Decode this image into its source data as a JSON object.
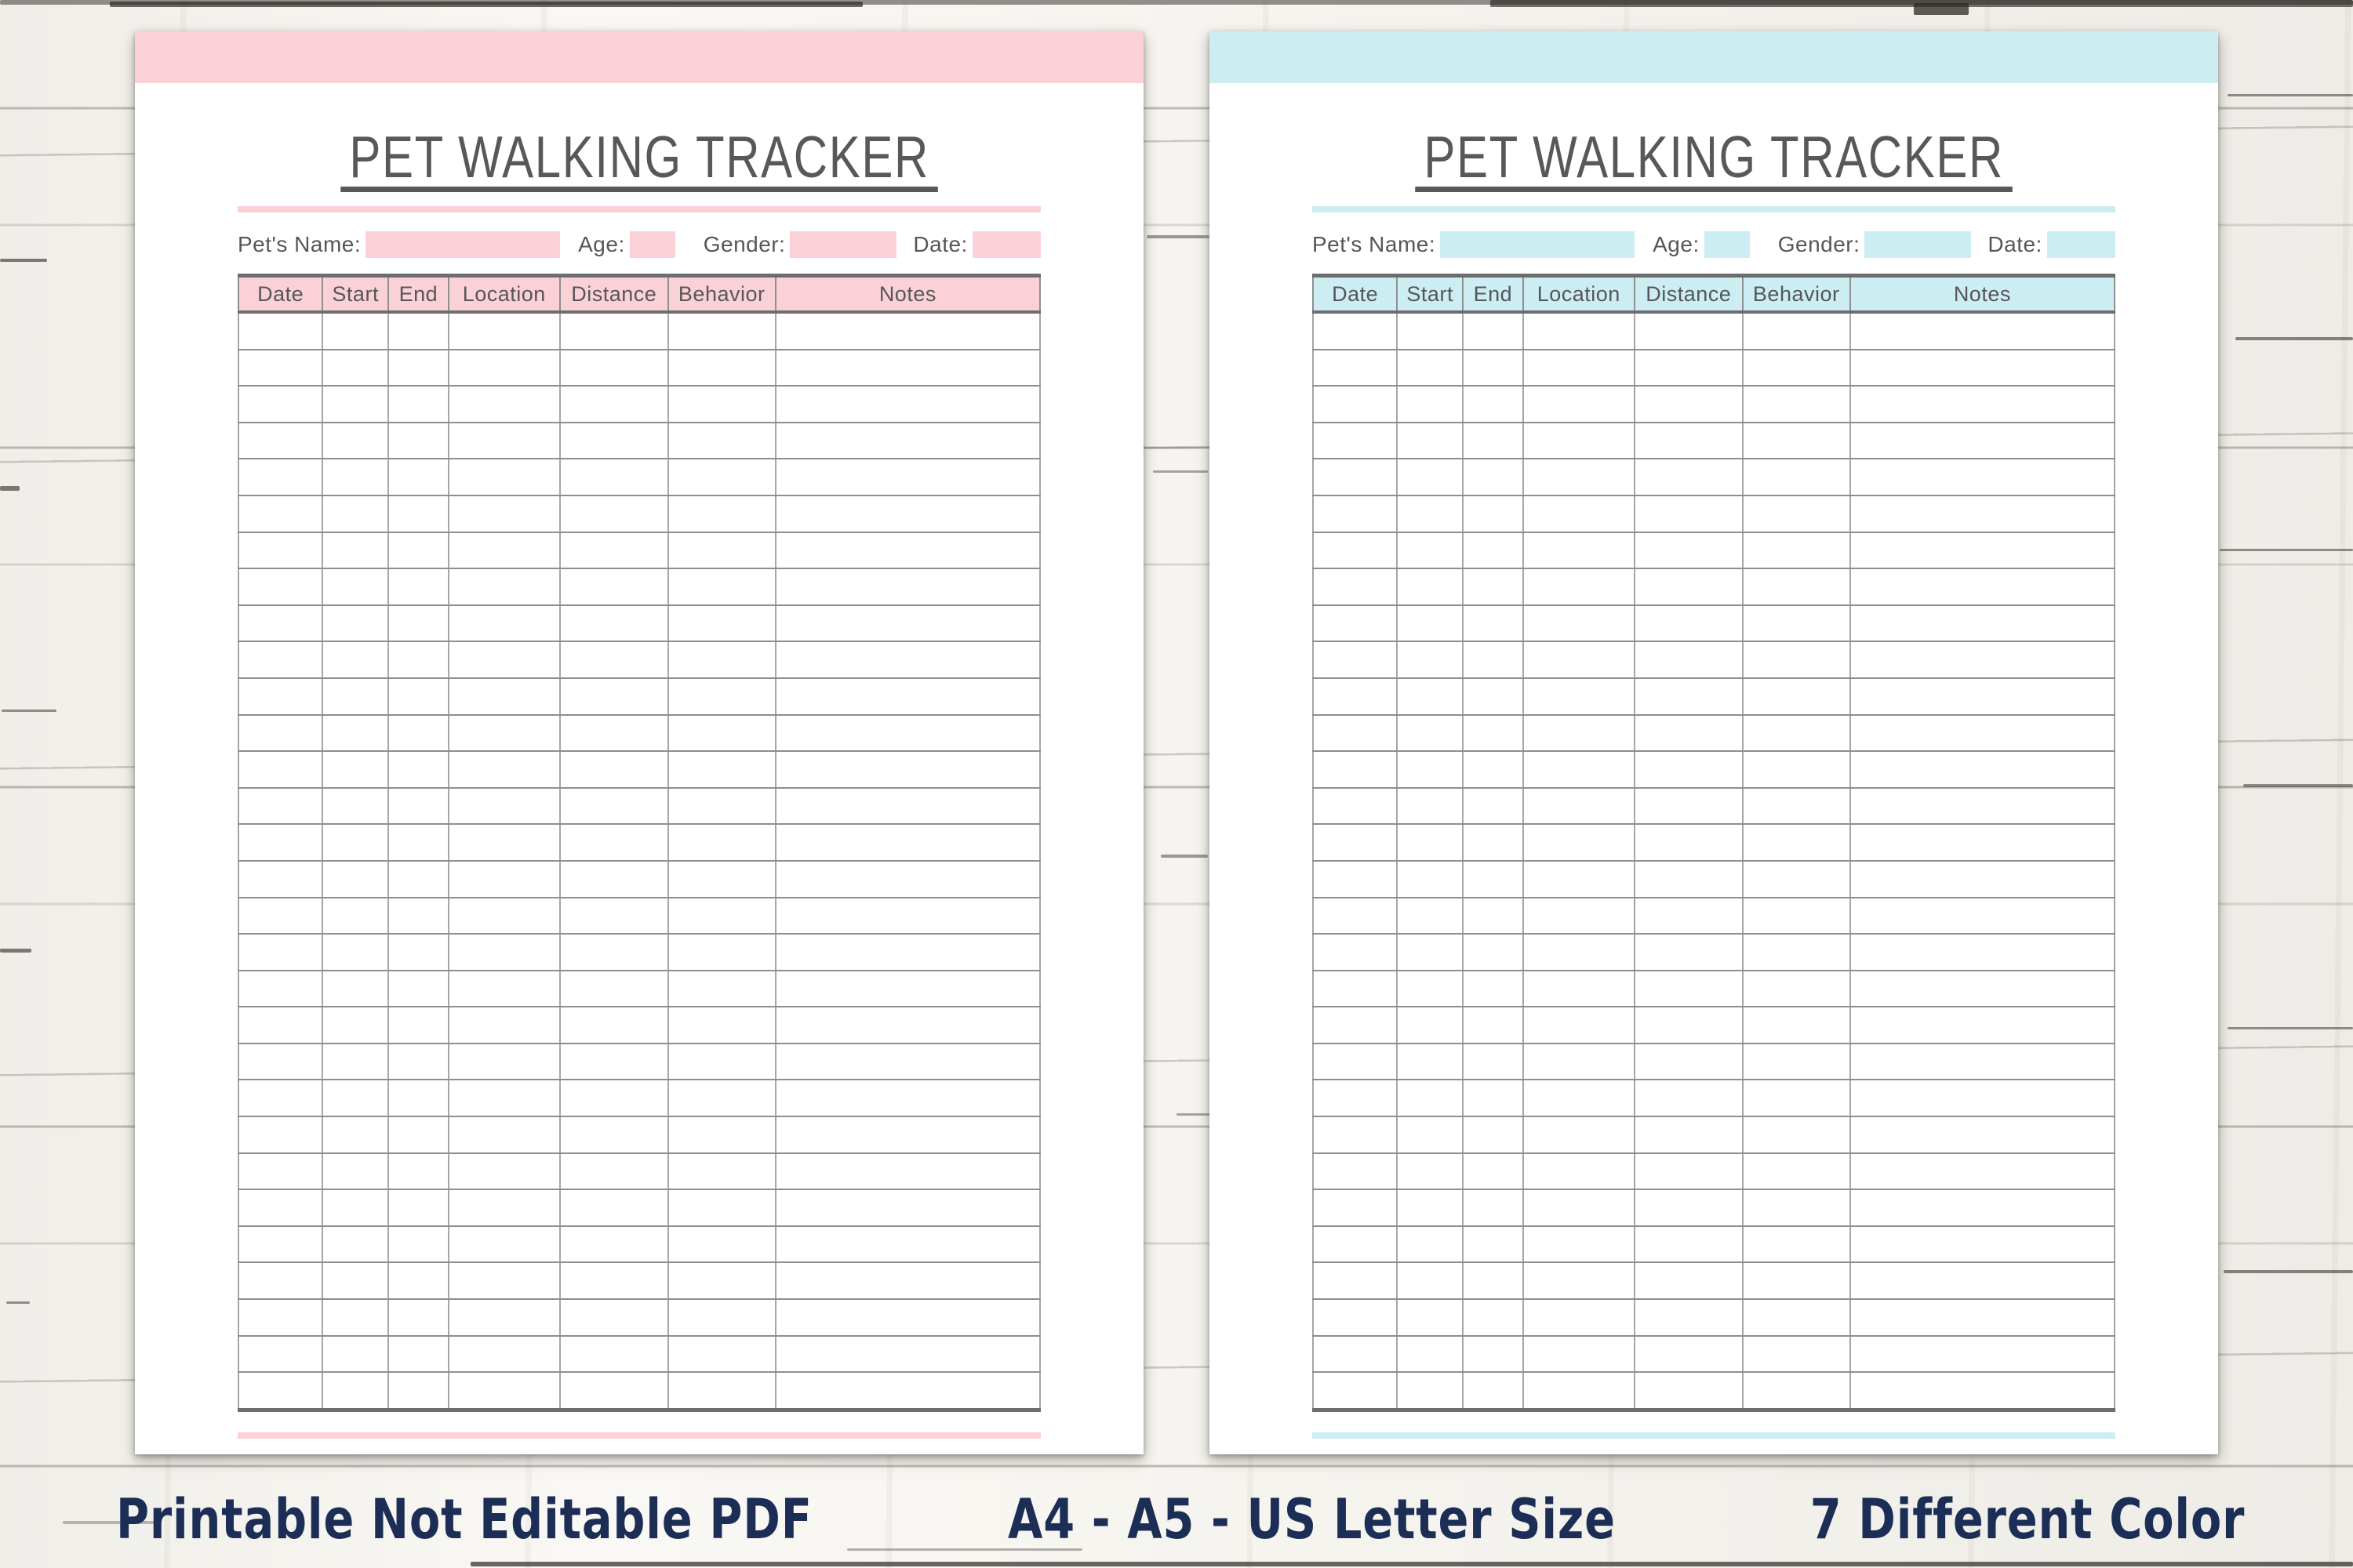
{
  "sheet": {
    "title": "PET WALKING TRACKER",
    "fields": [
      {
        "label": "Pet's Name:"
      },
      {
        "label": "Age:"
      },
      {
        "label": "Gender:"
      },
      {
        "label": "Date:"
      }
    ],
    "table": {
      "columns": [
        "Date",
        "Start",
        "End",
        "Location",
        "Distance",
        "Behavior",
        "Notes"
      ],
      "row_count": 30
    }
  },
  "variants": [
    {
      "name": "pink",
      "accent": "#fbd1d8"
    },
    {
      "name": "cyan",
      "accent": "#cceef3"
    }
  ],
  "footer": {
    "items": [
      "Printable Not Editable PDF",
      "A4 - A5 - US Letter Size",
      "7 Different Color"
    ]
  },
  "colors": {
    "title_text": "#58585b",
    "label_text": "#565659",
    "grid_heavy": "#6d6d6d",
    "grid_mid": "#8f8f8f",
    "grid_light": "#8e8e8e",
    "grid_vlight": "#a6a6a6",
    "footer_text": "#1c2e56"
  }
}
